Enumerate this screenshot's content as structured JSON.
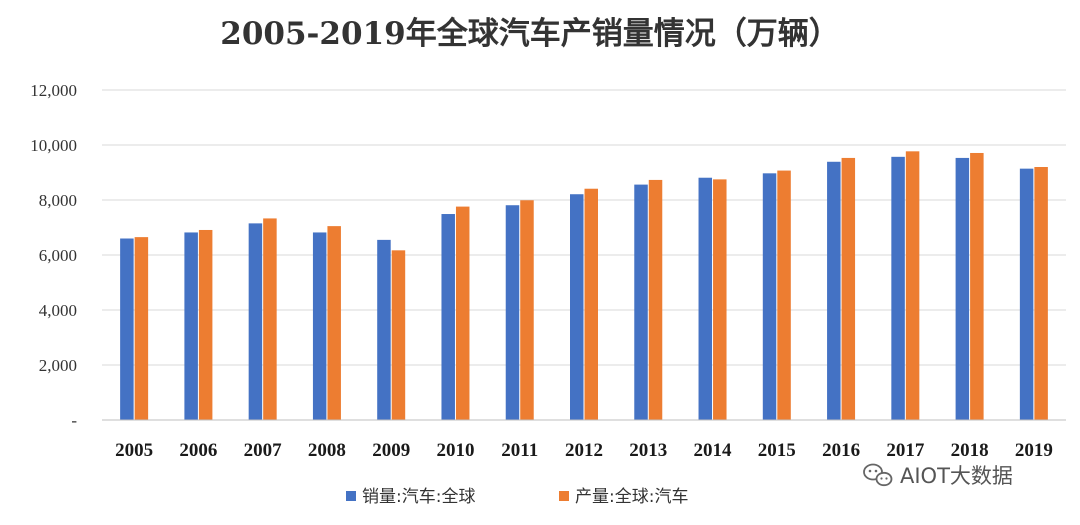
{
  "chart_data": {
    "type": "bar",
    "title": "2005-2019年全球汽车产销量情况（万辆）",
    "xlabel": "",
    "ylabel": "",
    "ylim": [
      0,
      12000
    ],
    "y_ticks": [
      "-",
      "2,000",
      "4,000",
      "6,000",
      "8,000",
      "10,000",
      "12,000"
    ],
    "y_tick_values": [
      0,
      2000,
      4000,
      6000,
      8000,
      10000,
      12000
    ],
    "grid": "horizontal",
    "legend_position": "bottom",
    "categories": [
      "2005",
      "2006",
      "2007",
      "2008",
      "2009",
      "2010",
      "2011",
      "2012",
      "2013",
      "2014",
      "2015",
      "2016",
      "2017",
      "2018",
      "2019"
    ],
    "series": [
      {
        "name": "销量:汽车:全球",
        "color": "#4472C4",
        "values": [
          6600,
          6820,
          7150,
          6820,
          6550,
          7490,
          7810,
          8210,
          8560,
          8810,
          8970,
          9390,
          9570,
          9530,
          9140
        ]
      },
      {
        "name": "产量:全球:汽车",
        "color": "#ED7D31",
        "values": [
          6650,
          6910,
          7330,
          7050,
          6170,
          7760,
          7990,
          8410,
          8730,
          8750,
          9070,
          9530,
          9770,
          9710,
          9200
        ]
      }
    ]
  },
  "watermark": {
    "icon": "wechat-icon",
    "text": "AIOT大数据"
  }
}
